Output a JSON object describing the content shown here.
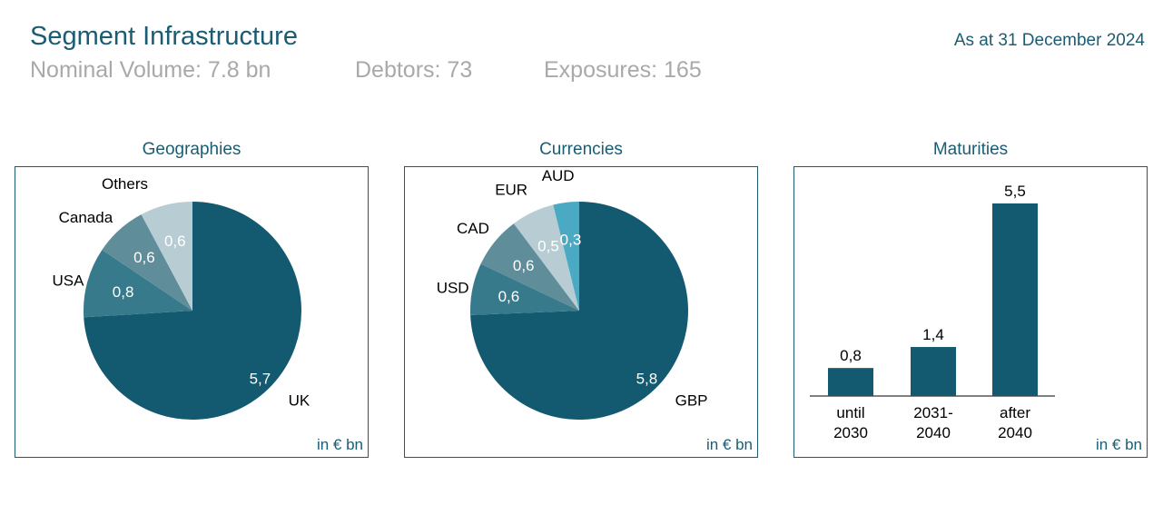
{
  "header": {
    "title": "Segment Infrastructure",
    "as_at": "As at 31 December 2024",
    "nominal_volume": "Nominal Volume: 7.8 bn",
    "debtors": "Debtors: 73",
    "exposures": "Exposures: 165"
  },
  "panels": {
    "geographies": {
      "title": "Geographies",
      "unit": "in € bn"
    },
    "currencies": {
      "title": "Currencies",
      "unit": "in € bn"
    },
    "maturities": {
      "title": "Maturities",
      "unit": "in € bn"
    }
  },
  "colors": {
    "dark": "#135a70",
    "mid": "#377a8c",
    "light": "#5f8d99",
    "pale": "#b8cdd3",
    "cyan": "#4aaac4",
    "bar": "#135a70",
    "text_accent": "#1a5c72"
  },
  "chart_data": [
    {
      "type": "pie",
      "title": "Geographies",
      "start": "12 o'clock",
      "direction": "clockwise",
      "slices": [
        {
          "label": "UK",
          "value": 5.7,
          "value_label": "5,7",
          "color": "#135a70"
        },
        {
          "label": "USA",
          "value": 0.8,
          "value_label": "0,8",
          "color": "#377a8c"
        },
        {
          "label": "Canada",
          "value": 0.6,
          "value_label": "0,6",
          "color": "#5f8d99"
        },
        {
          "label": "Others",
          "value": 0.6,
          "value_label": "0,6",
          "color": "#b8cdd3"
        }
      ]
    },
    {
      "type": "pie",
      "title": "Currencies",
      "start": "12 o'clock",
      "direction": "clockwise",
      "slices": [
        {
          "label": "GBP",
          "value": 5.8,
          "value_label": "5,8",
          "color": "#135a70"
        },
        {
          "label": "USD",
          "value": 0.6,
          "value_label": "0,6",
          "color": "#377a8c"
        },
        {
          "label": "CAD",
          "value": 0.6,
          "value_label": "0,6",
          "color": "#5f8d99"
        },
        {
          "label": "EUR",
          "value": 0.5,
          "value_label": "0,5",
          "color": "#b8cdd3"
        },
        {
          "label": "AUD",
          "value": 0.3,
          "value_label": "0,3",
          "color": "#4aaac4"
        }
      ]
    },
    {
      "type": "bar",
      "title": "Maturities",
      "categories": [
        "until 2030",
        "2031-2040",
        "after 2040"
      ],
      "category_lines": [
        [
          "until",
          "2030"
        ],
        [
          "2031-",
          "2040"
        ],
        [
          "after",
          "2040"
        ]
      ],
      "values": [
        0.8,
        1.4,
        5.5
      ],
      "value_labels": [
        "0,8",
        "1,4",
        "5,5"
      ],
      "ylim": [
        0,
        5.5
      ],
      "grid": false
    }
  ]
}
